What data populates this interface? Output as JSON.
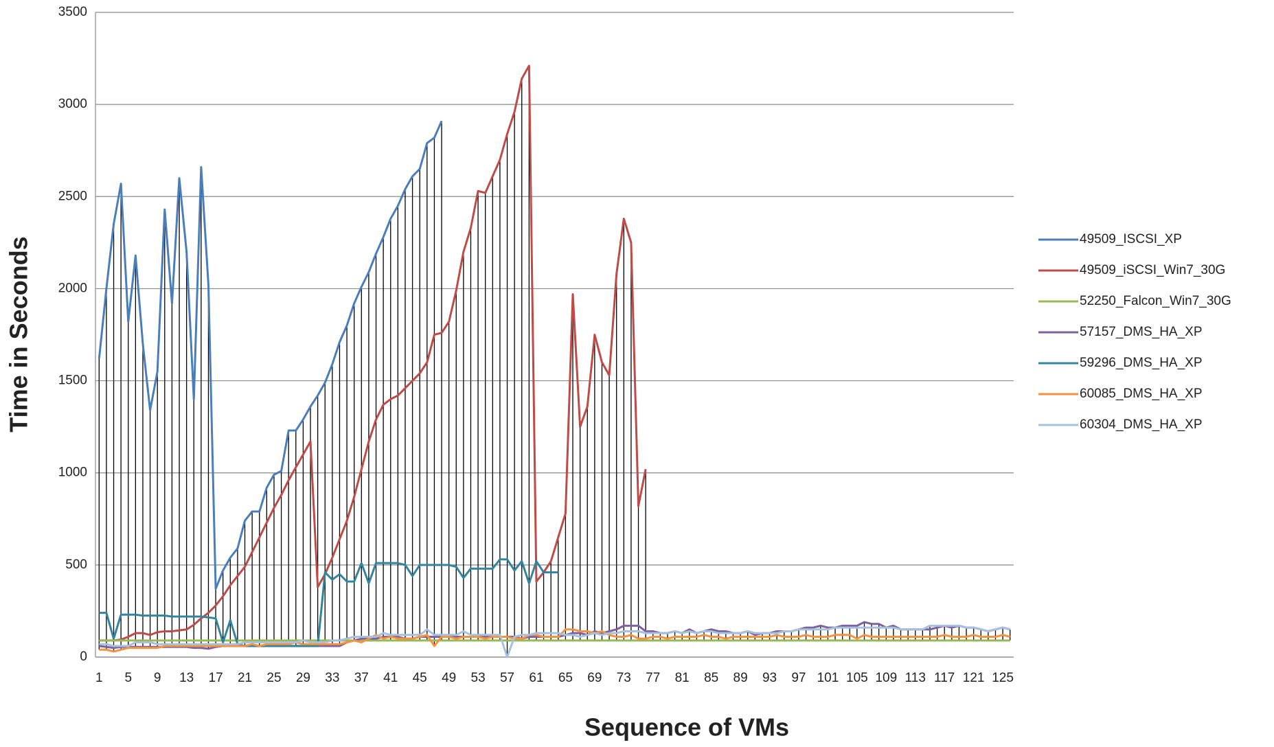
{
  "chart_data": {
    "type": "line",
    "x_label": "Sequence of VMs",
    "y_label": "Time in Seconds",
    "categories": [
      1,
      null,
      null,
      null,
      5,
      null,
      null,
      null,
      9,
      null,
      null,
      null,
      13,
      null,
      null,
      null,
      17,
      null,
      null,
      null,
      21,
      null,
      null,
      null,
      25,
      null,
      null,
      null,
      29,
      null,
      null,
      null,
      33,
      null,
      null,
      null,
      37,
      null,
      null,
      null,
      41,
      null,
      null,
      null,
      45,
      null,
      null,
      null,
      49,
      null,
      null,
      null,
      53,
      null,
      null,
      null,
      57,
      null,
      null,
      null,
      61,
      null,
      null,
      null,
      65,
      null,
      null,
      null,
      69,
      null,
      null,
      null,
      73,
      null,
      null,
      null,
      77,
      null,
      null,
      null,
      81,
      null,
      null,
      null,
      85,
      null,
      null,
      null,
      89,
      null,
      null,
      null,
      93,
      null,
      null,
      null,
      97,
      null,
      null,
      null,
      101,
      null,
      null,
      null,
      105,
      null,
      null,
      null,
      109,
      null,
      null,
      null,
      113,
      null,
      null,
      null,
      117,
      null,
      null,
      null,
      121,
      null,
      null,
      null,
      125,
      null
    ],
    "ylim": [
      0,
      3500
    ],
    "yticks": [
      0,
      500,
      1000,
      1500,
      2000,
      2500,
      3000,
      3500
    ],
    "grid": true,
    "legend": "right",
    "high_low_lines": true,
    "series": [
      {
        "name": "49509_ISCSI_XP",
        "color": "#4a7ebb",
        "values": [
          1620,
          2000,
          2350,
          2570,
          1820,
          2180,
          1700,
          1340,
          1550,
          2430,
          1920,
          2600,
          2200,
          1400,
          2660,
          2020,
          370,
          470,
          540,
          590,
          740,
          790,
          790,
          920,
          990,
          1010,
          1230,
          1230,
          1290,
          1360,
          1420,
          1490,
          1590,
          1710,
          1800,
          1920,
          2010,
          2090,
          2190,
          2280,
          2380,
          2450,
          2540,
          2610,
          2650,
          2790,
          2820,
          2910,
          null,
          null,
          null,
          null,
          null,
          null,
          null,
          null,
          null,
          null,
          null,
          null,
          null,
          null,
          null,
          null,
          null,
          null,
          null,
          null,
          null,
          null,
          null,
          null,
          null,
          null,
          null,
          null,
          null,
          null,
          null,
          null,
          null,
          null,
          null,
          null,
          null,
          null,
          null,
          null,
          null,
          null,
          null,
          null,
          null,
          null,
          null,
          null,
          null,
          null,
          null,
          null,
          null,
          null,
          null,
          null,
          null,
          null,
          null,
          null,
          null,
          null,
          null,
          null,
          null,
          null,
          null,
          null,
          null,
          null,
          null,
          null,
          null,
          null,
          null,
          null,
          null,
          null
        ]
      },
      {
        "name": "49509_iSCSI_Win7_30G",
        "color": "#be4b48",
        "values": [
          90,
          90,
          90,
          95,
          110,
          130,
          130,
          120,
          135,
          140,
          140,
          145,
          150,
          175,
          210,
          240,
          280,
          330,
          390,
          440,
          490,
          570,
          650,
          730,
          810,
          880,
          960,
          1030,
          1100,
          1170,
          380,
          450,
          540,
          640,
          740,
          870,
          1020,
          1170,
          1290,
          1370,
          1400,
          1420,
          1460,
          1500,
          1540,
          1600,
          1750,
          1760,
          1820,
          1990,
          2200,
          2330,
          2530,
          2520,
          2610,
          2700,
          2840,
          2960,
          3140,
          3210,
          410,
          460,
          520,
          650,
          780,
          1970,
          1250,
          1360,
          1750,
          1600,
          1530,
          2080,
          2380,
          2250,
          820,
          1020,
          null,
          null,
          null,
          null,
          null,
          null,
          null,
          null,
          null,
          null,
          null,
          null,
          null,
          null,
          null,
          null,
          null,
          null,
          null,
          null,
          null,
          null,
          null,
          null,
          null,
          null,
          null,
          null,
          null,
          null,
          null,
          null,
          null,
          null,
          null,
          null,
          null,
          null,
          null,
          null,
          null,
          null,
          null,
          null,
          null,
          null,
          null,
          null,
          null,
          null
        ]
      },
      {
        "name": "52250_Falcon_Win7_30G",
        "color": "#98b954",
        "values": [
          90,
          90,
          90,
          90,
          90,
          90,
          90,
          90,
          90,
          90,
          90,
          90,
          90,
          90,
          90,
          90,
          90,
          90,
          90,
          90,
          90,
          90,
          90,
          90,
          90,
          90,
          90,
          90,
          90,
          90,
          90,
          90,
          90,
          90,
          90,
          90,
          90,
          90,
          90,
          90,
          90,
          90,
          90,
          90,
          90,
          90,
          90,
          90,
          90,
          90,
          90,
          90,
          90,
          90,
          90,
          90,
          90,
          90,
          90,
          90,
          90,
          90,
          90,
          90,
          90,
          90,
          90,
          90,
          90,
          90,
          90,
          90,
          90,
          90,
          90,
          90,
          90,
          90,
          90,
          90,
          90,
          90,
          90,
          90,
          90,
          90,
          90,
          90,
          90,
          90,
          90,
          90,
          90,
          90,
          90,
          90,
          90,
          90,
          90,
          90,
          90,
          90,
          90,
          90,
          90,
          90,
          90,
          90,
          90,
          90,
          90,
          90,
          90,
          90,
          90,
          90,
          90,
          90,
          90,
          90,
          90,
          90,
          90,
          90,
          90,
          90
        ]
      },
      {
        "name": "57157_DMS_HA_XP",
        "color": "#7d60a0",
        "values": [
          60,
          55,
          50,
          55,
          55,
          55,
          55,
          55,
          55,
          55,
          55,
          55,
          55,
          50,
          50,
          45,
          55,
          60,
          60,
          60,
          60,
          60,
          60,
          60,
          60,
          60,
          60,
          60,
          60,
          60,
          60,
          60,
          60,
          60,
          80,
          90,
          100,
          100,
          100,
          110,
          110,
          110,
          100,
          100,
          110,
          110,
          110,
          110,
          110,
          110,
          110,
          110,
          110,
          110,
          110,
          110,
          110,
          110,
          100,
          110,
          110,
          110,
          110,
          110,
          120,
          130,
          130,
          120,
          140,
          130,
          140,
          150,
          170,
          170,
          170,
          140,
          140,
          130,
          130,
          140,
          130,
          150,
          130,
          140,
          150,
          140,
          140,
          130,
          130,
          140,
          120,
          130,
          130,
          140,
          140,
          140,
          150,
          160,
          160,
          170,
          160,
          160,
          170,
          170,
          170,
          190,
          180,
          180,
          160,
          170,
          150,
          150,
          150,
          150,
          150,
          160,
          170,
          160,
          170,
          160,
          160,
          150,
          140,
          150,
          160,
          150
        ]
      },
      {
        "name": "59296_DMS_HA_XP",
        "color": "#31859c",
        "values": [
          240,
          240,
          100,
          230,
          230,
          230,
          225,
          225,
          225,
          225,
          220,
          220,
          220,
          220,
          220,
          215,
          210,
          80,
          200,
          70,
          60,
          60,
          60,
          60,
          60,
          60,
          60,
          60,
          60,
          60,
          60,
          460,
          420,
          450,
          410,
          410,
          510,
          400,
          510,
          510,
          510,
          510,
          500,
          440,
          500,
          500,
          500,
          500,
          500,
          490,
          430,
          480,
          480,
          480,
          480,
          530,
          530,
          470,
          520,
          400,
          520,
          460,
          460,
          460,
          null,
          null,
          null,
          null,
          null,
          null,
          null,
          null,
          null,
          null,
          null,
          null,
          null,
          null,
          null,
          null,
          null,
          null,
          null,
          null,
          null,
          null,
          null,
          null,
          null,
          null,
          null,
          null,
          null,
          null,
          null,
          null,
          null,
          null,
          null,
          null,
          null,
          null,
          null,
          null,
          null,
          null,
          null,
          null,
          null,
          null,
          null,
          null,
          null,
          null,
          null,
          null,
          null,
          null,
          null,
          null,
          null,
          null,
          null,
          null,
          null,
          null
        ]
      },
      {
        "name": "60085_DMS_HA_XP",
        "color": "#f69240",
        "values": [
          40,
          40,
          30,
          40,
          50,
          50,
          50,
          50,
          50,
          60,
          60,
          60,
          60,
          60,
          60,
          60,
          60,
          60,
          60,
          60,
          60,
          70,
          60,
          70,
          70,
          70,
          70,
          80,
          70,
          70,
          70,
          70,
          70,
          70,
          80,
          90,
          80,
          100,
          120,
          100,
          110,
          100,
          100,
          100,
          110,
          120,
          60,
          110,
          110,
          100,
          110,
          110,
          110,
          100,
          110,
          110,
          110,
          100,
          100,
          120,
          120,
          110,
          110,
          110,
          150,
          150,
          140,
          140,
          130,
          140,
          120,
          110,
          110,
          120,
          100,
          100,
          110,
          110,
          100,
          110,
          110,
          110,
          110,
          120,
          110,
          110,
          100,
          110,
          110,
          110,
          110,
          110,
          110,
          120,
          110,
          110,
          110,
          120,
          110,
          110,
          110,
          120,
          120,
          120,
          100,
          120,
          110,
          110,
          110,
          110,
          110,
          110,
          110,
          110,
          110,
          110,
          120,
          110,
          110,
          110,
          120,
          110,
          110,
          110,
          120,
          110
        ]
      },
      {
        "name": "60304_DMS_HA_XP",
        "color": "#a7c0de",
        "values": [
          70,
          70,
          60,
          60,
          60,
          80,
          80,
          80,
          70,
          70,
          70,
          70,
          70,
          70,
          70,
          70,
          70,
          70,
          70,
          70,
          80,
          80,
          80,
          80,
          80,
          80,
          80,
          80,
          90,
          80,
          80,
          80,
          90,
          90,
          100,
          110,
          110,
          110,
          110,
          130,
          120,
          120,
          120,
          120,
          120,
          150,
          120,
          120,
          120,
          120,
          140,
          120,
          120,
          120,
          120,
          120,
          0,
          110,
          120,
          120,
          130,
          130,
          130,
          130,
          120,
          120,
          110,
          120,
          130,
          120,
          130,
          130,
          140,
          140,
          140,
          130,
          130,
          130,
          130,
          140,
          130,
          140,
          130,
          140,
          140,
          130,
          130,
          130,
          130,
          140,
          130,
          130,
          130,
          130,
          140,
          140,
          150,
          150,
          150,
          150,
          150,
          160,
          160,
          160,
          160,
          160,
          160,
          160,
          160,
          160,
          150,
          150,
          150,
          150,
          170,
          170,
          170,
          170,
          170,
          160,
          160,
          150,
          140,
          150,
          160,
          150
        ]
      }
    ]
  }
}
